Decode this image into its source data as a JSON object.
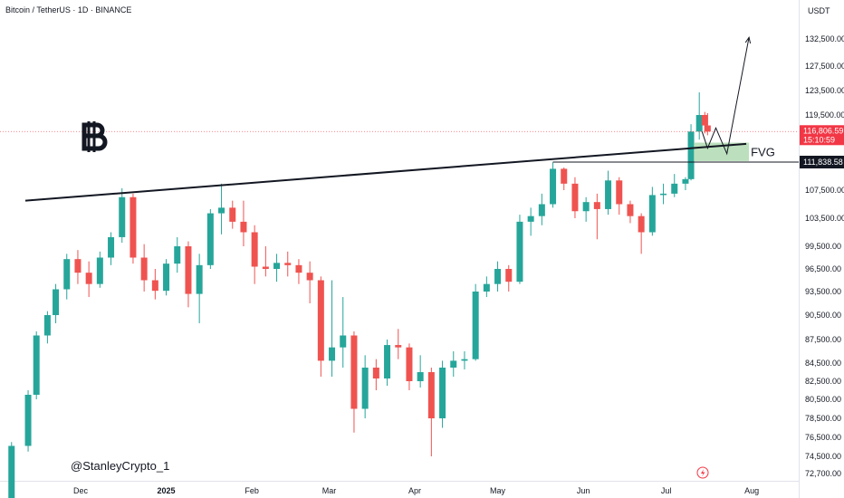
{
  "header": {
    "title": "Bitcoin / TetherUS · 1D · BINANCE",
    "currency": "USDT"
  },
  "watermark": "@StanleyCrypto_1",
  "annotations": {
    "fvg_label": "FVG",
    "logo_icon": "bitcoin-logo-icon",
    "bolt_icon": "lightning-icon"
  },
  "price_tags": {
    "current": "116,806.59",
    "countdown": "15:10:59",
    "level": "111,838.58"
  },
  "colors": {
    "up": "#26a69a",
    "down": "#ef5350",
    "fvg": "#a5d6a7",
    "tag_current": "#f23645",
    "tag_level": "#131722"
  },
  "chart_data": {
    "type": "candlestick",
    "y_ticks": [
      "132,500.00",
      "127,500.00",
      "123,500.00",
      "119,500.00",
      "111,838.58",
      "107,500.00",
      "103,500.00",
      "99,500.00",
      "96,500.00",
      "93,500.00",
      "90,500.00",
      "87,500.00",
      "84,500.00",
      "82,500.00",
      "80,500.00",
      "78,500.00",
      "76,500.00",
      "74,500.00",
      "72,700.00"
    ],
    "x_ticks": [
      "Dec",
      "2025",
      "Feb",
      "Mar",
      "Apr",
      "May",
      "Jun",
      "Jul",
      "Aug"
    ],
    "ylim": [
      72000,
      137000
    ],
    "current_price": 116806.59,
    "level_price": 111838.58,
    "trendline": {
      "from": [
        "2024-11-11",
        106000
      ],
      "to": [
        "2025-07-30",
        114800
      ]
    },
    "fvg_zone": {
      "from": "2025-07-11",
      "to": "2025-07-31",
      "low": 112000,
      "high": 115000
    },
    "projection_path": [
      [
        "2025-07-14",
        116806
      ],
      [
        "2025-07-16",
        114100
      ],
      [
        "2025-07-19",
        117400
      ],
      [
        "2025-07-23",
        113200
      ],
      [
        "2025-07-31",
        132800
      ]
    ],
    "candles": [
      {
        "d": "2024-11-06",
        "o": 69000,
        "h": 76000,
        "l": 68500,
        "c": 75600
      },
      {
        "d": "2024-11-12",
        "o": 75600,
        "h": 81500,
        "l": 75000,
        "c": 81000
      },
      {
        "d": "2024-11-15",
        "o": 81000,
        "h": 88500,
        "l": 80500,
        "c": 88000
      },
      {
        "d": "2024-11-19",
        "o": 88000,
        "h": 91000,
        "l": 87000,
        "c": 90500
      },
      {
        "d": "2024-11-22",
        "o": 90500,
        "h": 94500,
        "l": 89500,
        "c": 93800
      },
      {
        "d": "2024-11-26",
        "o": 93800,
        "h": 98500,
        "l": 92500,
        "c": 97800
      },
      {
        "d": "2024-11-30",
        "o": 97800,
        "h": 99000,
        "l": 94500,
        "c": 96000
      },
      {
        "d": "2024-12-04",
        "o": 96000,
        "h": 97500,
        "l": 92800,
        "c": 94500
      },
      {
        "d": "2024-12-08",
        "o": 94500,
        "h": 98800,
        "l": 94000,
        "c": 98000
      },
      {
        "d": "2024-12-12",
        "o": 98000,
        "h": 101500,
        "l": 97000,
        "c": 100800
      },
      {
        "d": "2024-12-16",
        "o": 100800,
        "h": 107800,
        "l": 100000,
        "c": 106500
      },
      {
        "d": "2024-12-20",
        "o": 106500,
        "h": 107000,
        "l": 97200,
        "c": 98000
      },
      {
        "d": "2024-12-24",
        "o": 98000,
        "h": 99800,
        "l": 93500,
        "c": 95000
      },
      {
        "d": "2024-12-28",
        "o": 95000,
        "h": 96500,
        "l": 92500,
        "c": 93600
      },
      {
        "d": "2025-01-01",
        "o": 93600,
        "h": 97800,
        "l": 93000,
        "c": 97200
      },
      {
        "d": "2025-01-05",
        "o": 97200,
        "h": 100800,
        "l": 96000,
        "c": 99500
      },
      {
        "d": "2025-01-09",
        "o": 99500,
        "h": 100200,
        "l": 91500,
        "c": 93200
      },
      {
        "d": "2025-01-13",
        "o": 93200,
        "h": 98500,
        "l": 89500,
        "c": 97000
      },
      {
        "d": "2025-01-17",
        "o": 97000,
        "h": 104800,
        "l": 96500,
        "c": 104200
      },
      {
        "d": "2025-01-21",
        "o": 104200,
        "h": 108500,
        "l": 101200,
        "c": 105000
      },
      {
        "d": "2025-01-25",
        "o": 105000,
        "h": 106000,
        "l": 102000,
        "c": 103000
      },
      {
        "d": "2025-01-29",
        "o": 103000,
        "h": 106000,
        "l": 99500,
        "c": 101500
      },
      {
        "d": "2025-02-02",
        "o": 101500,
        "h": 102500,
        "l": 94500,
        "c": 96800
      },
      {
        "d": "2025-02-06",
        "o": 96800,
        "h": 99500,
        "l": 95500,
        "c": 96500
      },
      {
        "d": "2025-02-10",
        "o": 96500,
        "h": 98500,
        "l": 94800,
        "c": 97300
      },
      {
        "d": "2025-02-14",
        "o": 97300,
        "h": 98800,
        "l": 95500,
        "c": 97000
      },
      {
        "d": "2025-02-18",
        "o": 97000,
        "h": 97800,
        "l": 94500,
        "c": 96000
      },
      {
        "d": "2025-02-22",
        "o": 96000,
        "h": 97500,
        "l": 92000,
        "c": 95000
      },
      {
        "d": "2025-02-26",
        "o": 95000,
        "h": 95500,
        "l": 83000,
        "c": 84800
      },
      {
        "d": "2025-03-02",
        "o": 84800,
        "h": 95000,
        "l": 83000,
        "c": 86500
      },
      {
        "d": "2025-03-06",
        "o": 86500,
        "h": 92800,
        "l": 84000,
        "c": 88000
      },
      {
        "d": "2025-03-10",
        "o": 88000,
        "h": 88500,
        "l": 77000,
        "c": 79500
      },
      {
        "d": "2025-03-14",
        "o": 79500,
        "h": 85500,
        "l": 78500,
        "c": 84000
      },
      {
        "d": "2025-03-18",
        "o": 84000,
        "h": 85000,
        "l": 81500,
        "c": 82800
      },
      {
        "d": "2025-03-22",
        "o": 82800,
        "h": 87500,
        "l": 82000,
        "c": 86800
      },
      {
        "d": "2025-03-26",
        "o": 86800,
        "h": 88800,
        "l": 85000,
        "c": 86500
      },
      {
        "d": "2025-03-30",
        "o": 86500,
        "h": 87000,
        "l": 81500,
        "c": 82500
      },
      {
        "d": "2025-04-03",
        "o": 82500,
        "h": 85500,
        "l": 81800,
        "c": 83500
      },
      {
        "d": "2025-04-07",
        "o": 83500,
        "h": 84000,
        "l": 74500,
        "c": 78500
      },
      {
        "d": "2025-04-11",
        "o": 78500,
        "h": 84800,
        "l": 77500,
        "c": 84000
      },
      {
        "d": "2025-04-15",
        "o": 84000,
        "h": 86000,
        "l": 83000,
        "c": 84800
      },
      {
        "d": "2025-04-19",
        "o": 84800,
        "h": 86000,
        "l": 83800,
        "c": 85000
      },
      {
        "d": "2025-04-23",
        "o": 85000,
        "h": 94500,
        "l": 84800,
        "c": 93500
      },
      {
        "d": "2025-04-27",
        "o": 93500,
        "h": 95500,
        "l": 92800,
        "c": 94500
      },
      {
        "d": "2025-05-01",
        "o": 94500,
        "h": 97500,
        "l": 93500,
        "c": 96500
      },
      {
        "d": "2025-05-05",
        "o": 96500,
        "h": 97000,
        "l": 93500,
        "c": 94800
      },
      {
        "d": "2025-05-09",
        "o": 94800,
        "h": 104000,
        "l": 94500,
        "c": 103000
      },
      {
        "d": "2025-05-13",
        "o": 103000,
        "h": 105000,
        "l": 101000,
        "c": 103800
      },
      {
        "d": "2025-05-17",
        "o": 103800,
        "h": 107000,
        "l": 102500,
        "c": 105500
      },
      {
        "d": "2025-05-21",
        "o": 105500,
        "h": 111800,
        "l": 105000,
        "c": 110800
      },
      {
        "d": "2025-05-25",
        "o": 110800,
        "h": 111000,
        "l": 107500,
        "c": 108500
      },
      {
        "d": "2025-05-29",
        "o": 108500,
        "h": 109500,
        "l": 103500,
        "c": 104500
      },
      {
        "d": "2025-06-02",
        "o": 104500,
        "h": 106500,
        "l": 103000,
        "c": 105800
      },
      {
        "d": "2025-06-06",
        "o": 105800,
        "h": 107000,
        "l": 100500,
        "c": 104800
      },
      {
        "d": "2025-06-10",
        "o": 104800,
        "h": 110500,
        "l": 104000,
        "c": 109000
      },
      {
        "d": "2025-06-14",
        "o": 109000,
        "h": 109500,
        "l": 104000,
        "c": 105500
      },
      {
        "d": "2025-06-18",
        "o": 105500,
        "h": 106000,
        "l": 102800,
        "c": 103800
      },
      {
        "d": "2025-06-22",
        "o": 103800,
        "h": 104200,
        "l": 98500,
        "c": 101500
      },
      {
        "d": "2025-06-26",
        "o": 101500,
        "h": 108000,
        "l": 101000,
        "c": 106800
      },
      {
        "d": "2025-06-30",
        "o": 106800,
        "h": 108500,
        "l": 105500,
        "c": 107000
      },
      {
        "d": "2025-07-04",
        "o": 107000,
        "h": 110000,
        "l": 106500,
        "c": 108500
      },
      {
        "d": "2025-07-08",
        "o": 108500,
        "h": 109500,
        "l": 107500,
        "c": 109200
      },
      {
        "d": "2025-07-10",
        "o": 109200,
        "h": 118000,
        "l": 109000,
        "c": 116800
      },
      {
        "d": "2025-07-13",
        "o": 116800,
        "h": 123200,
        "l": 115500,
        "c": 119500
      },
      {
        "d": "2025-07-15",
        "o": 119500,
        "h": 120000,
        "l": 116500,
        "c": 117800
      },
      {
        "d": "2025-07-16",
        "o": 117800,
        "h": 119800,
        "l": 116200,
        "c": 116806
      }
    ]
  }
}
